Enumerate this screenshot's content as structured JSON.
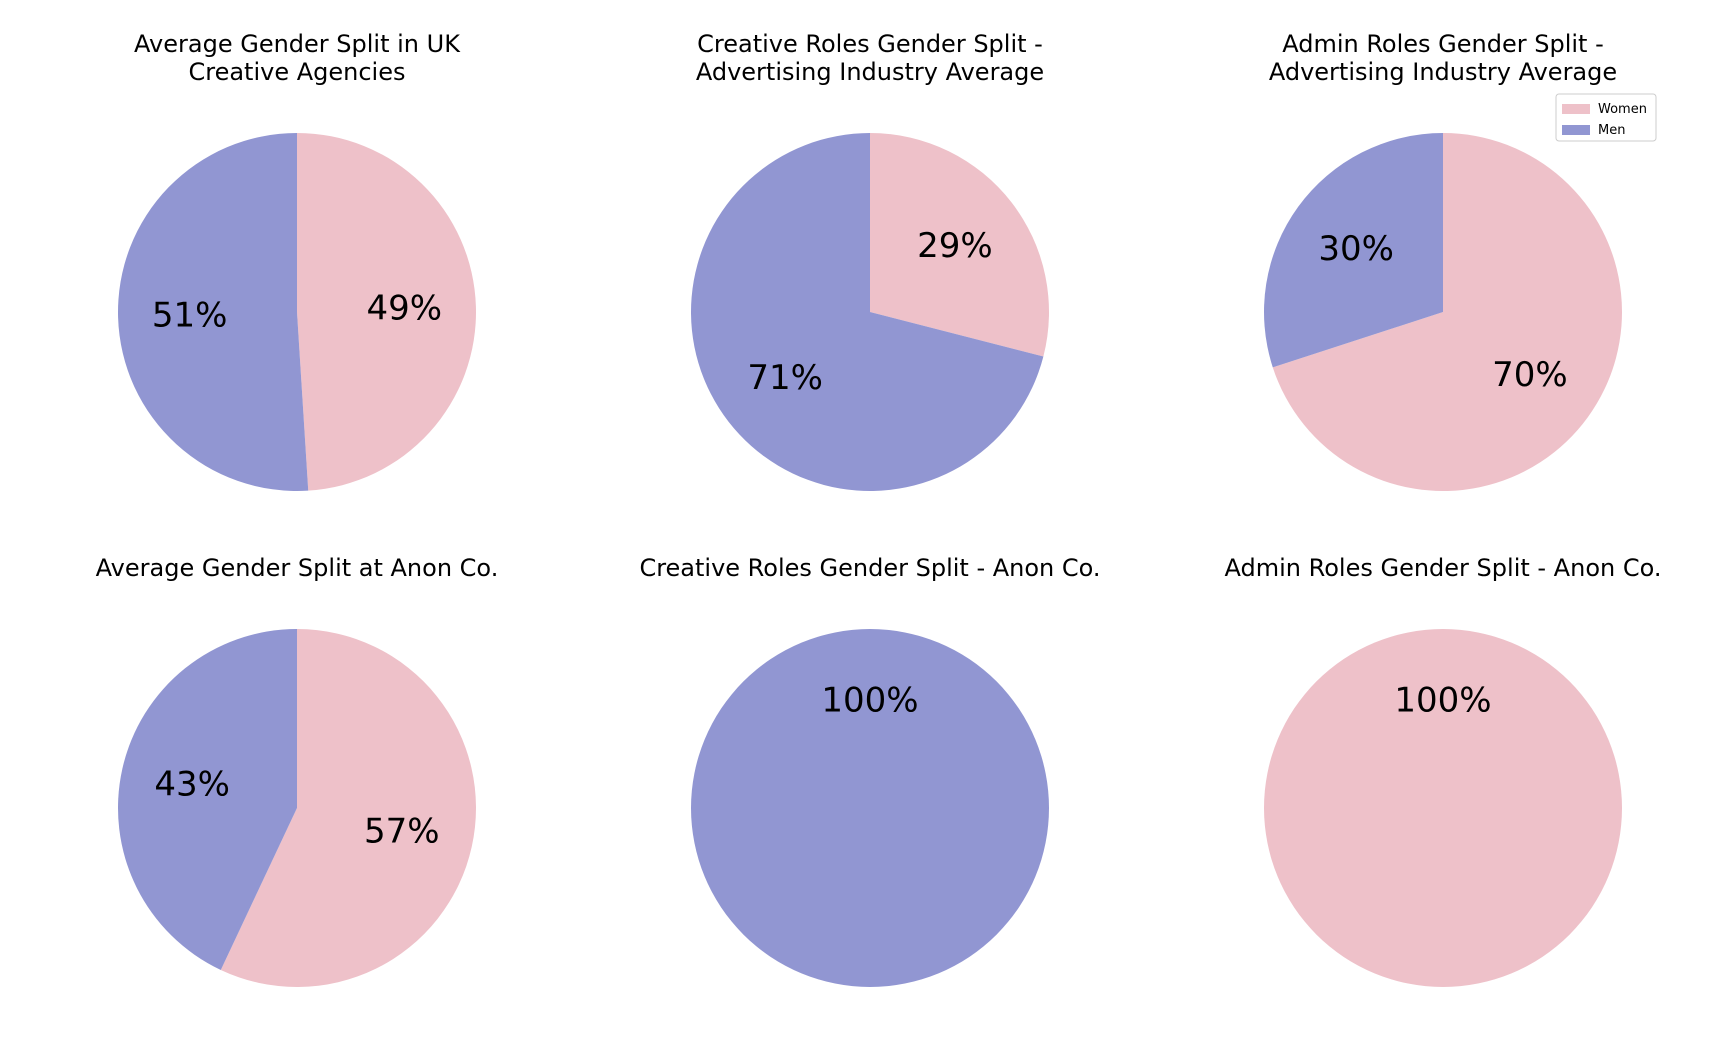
{
  "colors": {
    "women": "#eec1c9",
    "men": "#9196d2"
  },
  "legend": {
    "items": [
      {
        "label": "Women",
        "color": "#eec1c9"
      },
      {
        "label": "Men",
        "color": "#9196d2"
      }
    ],
    "placement": "top-right"
  },
  "chart_data": [
    {
      "type": "pie",
      "title_lines": [
        "Average Gender Split in UK",
        "Creative Agencies"
      ],
      "slices": [
        {
          "name": "Women",
          "value": 49,
          "label": "49%"
        },
        {
          "name": "Men",
          "value": 51,
          "label": "51%"
        }
      ]
    },
    {
      "type": "pie",
      "title_lines": [
        "Creative Roles Gender Split -",
        "Advertising Industry Average"
      ],
      "slices": [
        {
          "name": "Women",
          "value": 29,
          "label": "29%"
        },
        {
          "name": "Men",
          "value": 71,
          "label": "71%"
        }
      ]
    },
    {
      "type": "pie",
      "title_lines": [
        "Admin Roles Gender Split -",
        "Advertising Industry Average"
      ],
      "slices": [
        {
          "name": "Women",
          "value": 70,
          "label": "70%"
        },
        {
          "name": "Men",
          "value": 30,
          "label": "30%"
        }
      ]
    },
    {
      "type": "pie",
      "title_lines": [
        "Average Gender Split at Anon Co."
      ],
      "slices": [
        {
          "name": "Women",
          "value": 57,
          "label": "57%"
        },
        {
          "name": "Men",
          "value": 43,
          "label": "43%"
        }
      ]
    },
    {
      "type": "pie",
      "title_lines": [
        "Creative Roles Gender Split - Anon Co."
      ],
      "slices": [
        {
          "name": "Women",
          "value": 0,
          "label": ""
        },
        {
          "name": "Men",
          "value": 100,
          "label": "100%"
        }
      ]
    },
    {
      "type": "pie",
      "title_lines": [
        "Admin Roles Gender Split - Anon Co."
      ],
      "slices": [
        {
          "name": "Women",
          "value": 100,
          "label": "100%"
        },
        {
          "name": "Men",
          "value": 0,
          "label": ""
        }
      ]
    }
  ]
}
